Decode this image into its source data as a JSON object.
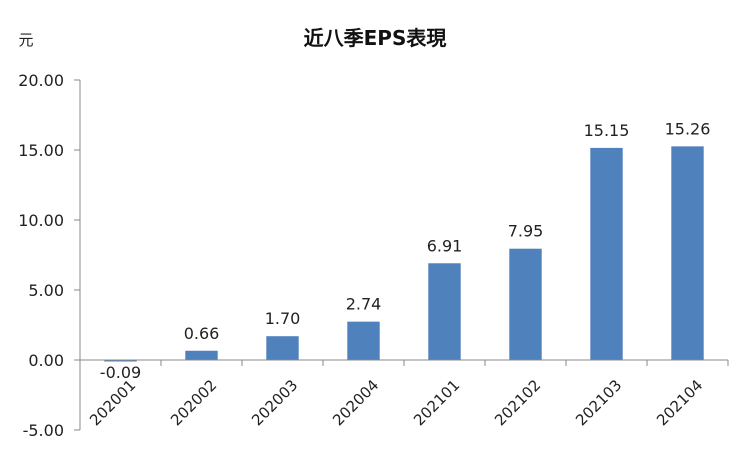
{
  "chart_data": {
    "type": "bar",
    "title": "近八季EPS表現",
    "unit_label": "元",
    "categories": [
      "202001",
      "202002",
      "202003",
      "202004",
      "202101",
      "202102",
      "202103",
      "202104"
    ],
    "values": [
      -0.09,
      0.66,
      1.7,
      2.74,
      6.91,
      7.95,
      15.15,
      15.26
    ],
    "data_labels": [
      "-0.09",
      "0.66",
      "1.70",
      "2.74",
      "6.91",
      "7.95",
      "15.15",
      "15.26"
    ],
    "ylim": [
      -5,
      20
    ],
    "yticks": [
      "-5.00",
      "0.00",
      "5.00",
      "10.00",
      "15.00",
      "20.00"
    ],
    "ytick_values": [
      -5,
      0,
      5,
      10,
      15,
      20
    ],
    "bar_color": "#4F81BD",
    "grid": false,
    "legend": "none"
  }
}
